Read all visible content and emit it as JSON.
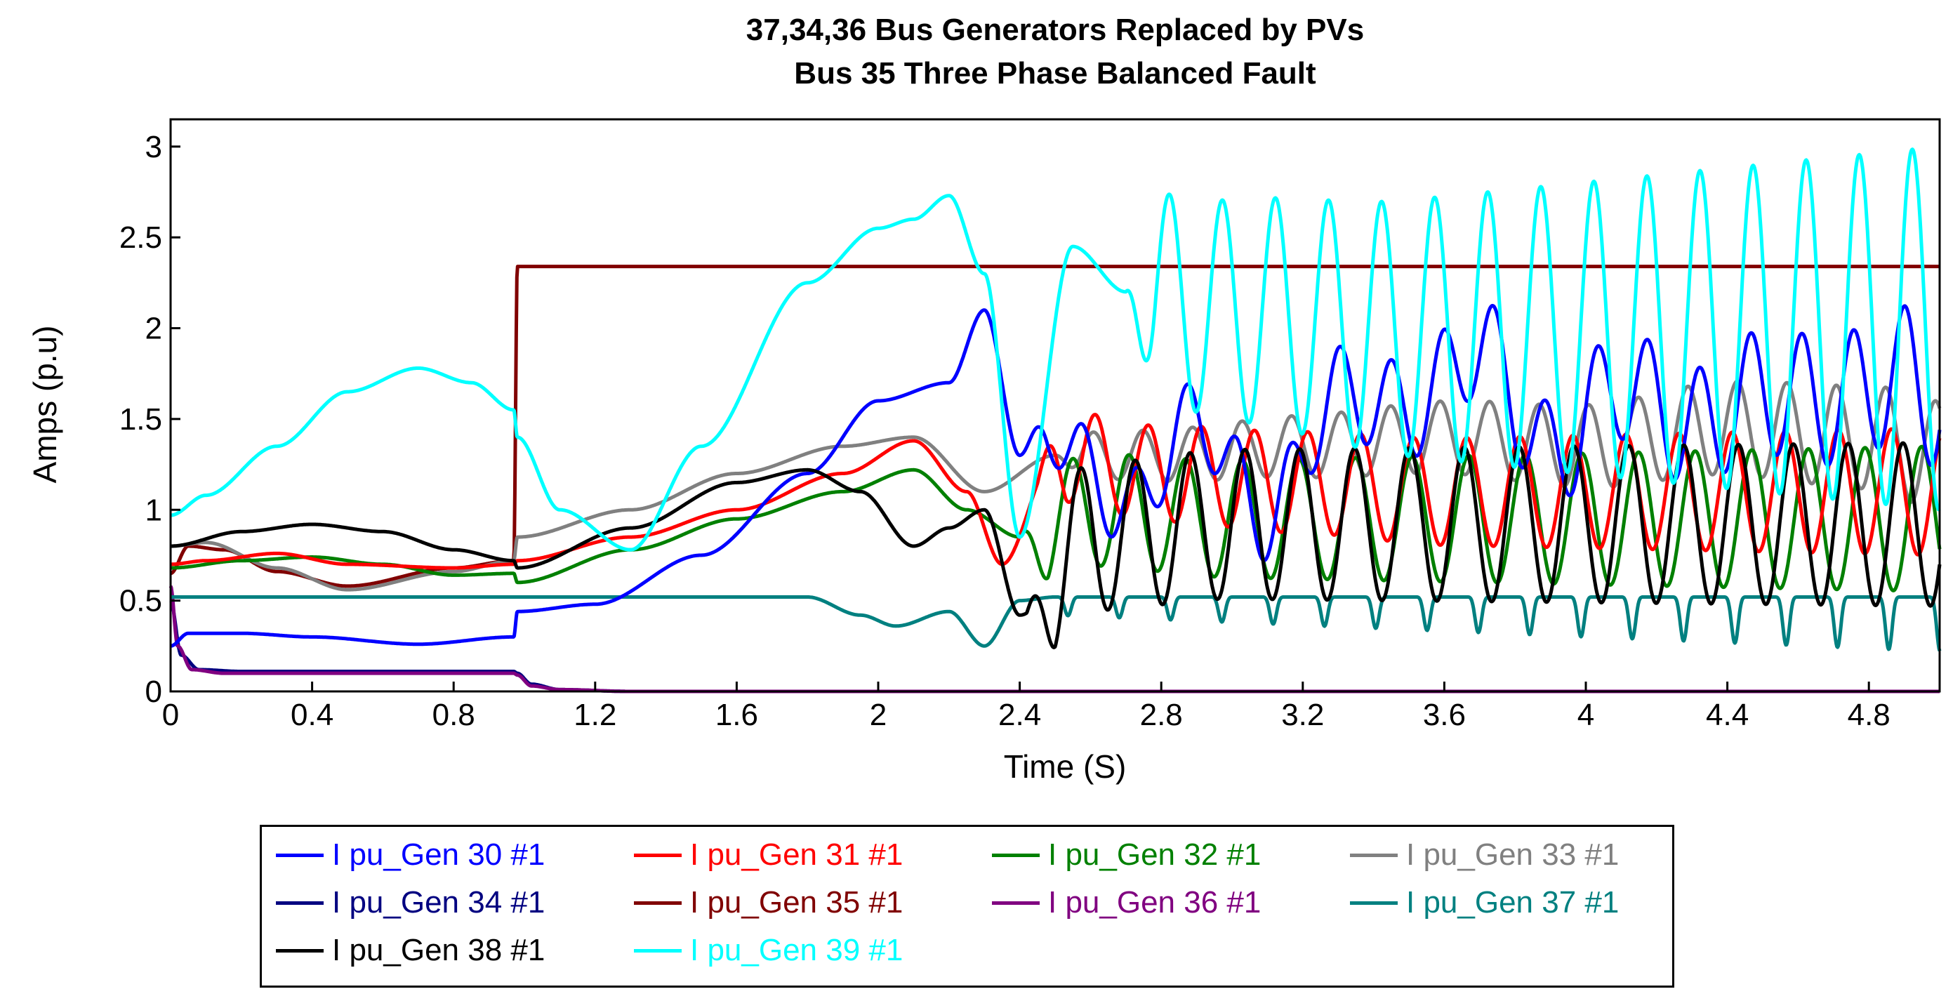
{
  "chart_data": {
    "type": "line",
    "title": "37,34,36  Bus Generators Replaced by PVs",
    "subtitle": "Bus 35 Three Phase Balanced Fault",
    "xlabel": "Time (S)",
    "ylabel": "Amps (p.u)",
    "xlim": [
      0,
      5.0
    ],
    "ylim": [
      0,
      3.15
    ],
    "xticks": [
      0,
      0.4,
      0.8,
      1.2,
      1.6,
      2,
      2.4,
      2.8,
      3.2,
      3.6,
      4,
      4.4,
      4.8
    ],
    "xtick_labels": [
      "0",
      "0.4",
      "0.8",
      "1.2",
      "1.6",
      "2",
      "2.4",
      "2.8",
      "3.2",
      "3.6",
      "4",
      "4.4",
      "4.8"
    ],
    "yticks": [
      0,
      0.5,
      1,
      1.5,
      2,
      2.5,
      3
    ],
    "ytick_labels": [
      "0",
      "0.5",
      "1",
      "1.5",
      "2",
      "2.5",
      "3"
    ],
    "fault_time": 0.98,
    "series": [
      {
        "name": "I pu_Gen 30 #1",
        "color": "#0000ff",
        "x": [
          0,
          0.05,
          0.2,
          0.4,
          0.7,
          0.97,
          0.98,
          1.2,
          1.5,
          1.8,
          2.0,
          2.2,
          2.3,
          2.4,
          2.5,
          2.7,
          2.9,
          3.1,
          3.3,
          3.5,
          3.7,
          3.9,
          4.1,
          4.3,
          4.5,
          4.7,
          4.9,
          5.0
        ],
        "values": [
          0.25,
          0.32,
          0.32,
          0.3,
          0.26,
          0.3,
          0.44,
          0.48,
          0.75,
          1.2,
          1.6,
          1.7,
          2.1,
          1.3,
          1.42,
          1.0,
          1.5,
          0.95,
          1.65,
          1.55,
          1.9,
          1.3,
          1.7,
          1.45,
          1.65,
          1.6,
          1.75,
          1.6
        ],
        "osc": {
          "start": 2.4,
          "period": 0.145,
          "amp0": 0.18,
          "amp1": 0.38
        }
      },
      {
        "name": "I pu_Gen 31 #1",
        "color": "#ff0000",
        "x": [
          0,
          0.1,
          0.3,
          0.5,
          0.8,
          0.97,
          0.98,
          1.3,
          1.6,
          1.9,
          2.1,
          2.25,
          2.35,
          2.5,
          2.8,
          3.2,
          3.6,
          4.0,
          4.4,
          4.8,
          5.0
        ],
        "values": [
          0.7,
          0.72,
          0.76,
          0.7,
          0.68,
          0.7,
          0.72,
          0.85,
          1.0,
          1.2,
          1.38,
          1.1,
          0.7,
          1.3,
          1.2,
          1.15,
          1.1,
          1.1,
          1.1,
          1.1,
          1.1
        ],
        "osc": {
          "start": 2.45,
          "period": 0.15,
          "amp0": 0.25,
          "amp1": 0.35
        }
      },
      {
        "name": "I pu_Gen 32 #1",
        "color": "#008000",
        "x": [
          0,
          0.2,
          0.4,
          0.6,
          0.8,
          0.97,
          0.98,
          1.3,
          1.6,
          1.9,
          2.1,
          2.25,
          2.4,
          2.6,
          3.0,
          3.5,
          4.0,
          4.5,
          5.0
        ],
        "values": [
          0.68,
          0.72,
          0.74,
          0.7,
          0.64,
          0.65,
          0.6,
          0.78,
          0.95,
          1.1,
          1.22,
          1.0,
          0.85,
          1.0,
          0.95,
          0.95,
          0.95,
          0.95,
          0.95
        ],
        "osc": {
          "start": 2.4,
          "period": 0.16,
          "amp0": 0.3,
          "amp1": 0.4
        }
      },
      {
        "name": "I pu_Gen 33 #1",
        "color": "#808080",
        "x": [
          0,
          0.1,
          0.3,
          0.5,
          0.8,
          0.97,
          0.98,
          1.3,
          1.6,
          1.9,
          2.1,
          2.3,
          2.5,
          2.8,
          3.2,
          3.6,
          4.0,
          4.4,
          4.8,
          5.0
        ],
        "values": [
          0.8,
          0.82,
          0.68,
          0.56,
          0.66,
          0.72,
          0.85,
          1.0,
          1.2,
          1.35,
          1.4,
          1.1,
          1.3,
          1.3,
          1.35,
          1.4,
          1.35,
          1.45,
          1.4,
          1.3
        ],
        "osc": {
          "start": 2.5,
          "period": 0.14,
          "amp0": 0.12,
          "amp1": 0.3
        }
      },
      {
        "name": "I pu_Gen 34 #1",
        "color": "#000080",
        "x": [
          0,
          0.03,
          0.08,
          0.2,
          0.5,
          0.97,
          0.98,
          1.02,
          1.1,
          1.3,
          5.0
        ],
        "values": [
          0.5,
          0.2,
          0.12,
          0.11,
          0.11,
          0.11,
          0.1,
          0.04,
          0.01,
          0.0,
          0.0
        ]
      },
      {
        "name": "I pu_Gen 35 #1",
        "color": "#800000",
        "x": [
          0,
          0.05,
          0.15,
          0.3,
          0.5,
          0.8,
          0.97,
          0.98,
          5.0
        ],
        "values": [
          0.65,
          0.8,
          0.78,
          0.66,
          0.58,
          0.68,
          0.72,
          2.34,
          2.34
        ]
      },
      {
        "name": "I pu_Gen 36 #1",
        "color": "#800080",
        "x": [
          0,
          0.02,
          0.06,
          0.15,
          0.5,
          0.97,
          0.98,
          1.02,
          1.1,
          1.3,
          5.0
        ],
        "values": [
          0.58,
          0.25,
          0.12,
          0.1,
          0.1,
          0.1,
          0.09,
          0.03,
          0.01,
          0.0,
          0.0
        ]
      },
      {
        "name": "I pu_Gen 37 #1",
        "color": "#008080",
        "x": [
          0,
          1.8,
          1.95,
          2.05,
          2.2,
          2.3,
          2.4,
          2.5,
          3.0,
          3.5,
          4.0,
          4.5,
          5.0
        ],
        "values": [
          0.52,
          0.52,
          0.42,
          0.36,
          0.44,
          0.25,
          0.5,
          0.52,
          0.52,
          0.52,
          0.52,
          0.52,
          0.52
        ],
        "dips": {
          "start": 2.5,
          "period": 0.145,
          "depth0": 0.1,
          "depth1": 0.3
        }
      },
      {
        "name": "I pu_Gen 38 #1",
        "color": "#000000",
        "x": [
          0,
          0.2,
          0.4,
          0.6,
          0.8,
          0.97,
          0.98,
          1.3,
          1.6,
          1.8,
          1.95,
          2.1,
          2.2,
          2.3,
          2.4,
          2.6,
          3.0,
          3.5,
          4.0,
          4.5,
          5.0
        ],
        "values": [
          0.8,
          0.88,
          0.92,
          0.88,
          0.78,
          0.72,
          0.68,
          0.9,
          1.15,
          1.22,
          1.1,
          0.8,
          0.9,
          1.0,
          0.42,
          0.85,
          0.92,
          0.92,
          0.92,
          0.92,
          0.92
        ],
        "osc": {
          "start": 2.42,
          "period": 0.155,
          "amp0": 0.4,
          "amp1": 0.45
        }
      },
      {
        "name": "I pu_Gen 39 #1",
        "color": "#00ffff",
        "x": [
          0,
          0.1,
          0.3,
          0.5,
          0.7,
          0.85,
          0.97,
          0.98,
          1.1,
          1.3,
          1.5,
          1.8,
          2.0,
          2.1,
          2.2,
          2.3,
          2.4,
          2.55,
          2.7,
          3.0,
          3.5,
          4.0,
          4.5,
          5.0
        ],
        "values": [
          0.97,
          1.08,
          1.35,
          1.65,
          1.78,
          1.7,
          1.55,
          1.4,
          1.0,
          0.78,
          1.35,
          2.25,
          2.55,
          2.6,
          2.73,
          2.3,
          0.85,
          2.45,
          2.2,
          2.1,
          2.0,
          2.0,
          2.0,
          2.0
        ],
        "osc": {
          "start": 2.7,
          "period": 0.15,
          "amp0": 0.55,
          "amp1": 1.0
        }
      }
    ]
  }
}
